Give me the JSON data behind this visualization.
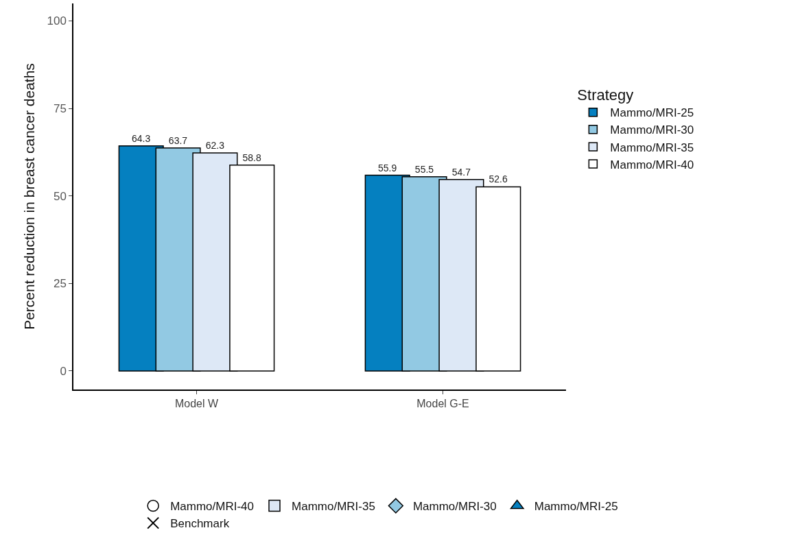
{
  "chart_data": {
    "type": "bar",
    "ylabel": "Percent reduction in breast cancer deaths",
    "legend_title": "Strategy",
    "categories": [
      "Model W",
      "Model G-E"
    ],
    "ylim": [
      -5.3,
      105
    ],
    "yticks": [
      0,
      25,
      50,
      75,
      100
    ],
    "grid": false,
    "legend": "right",
    "data_labels": true,
    "series": [
      {
        "name": "Mammo/MRI-25",
        "color": "#0580c0",
        "values": [
          64.3,
          55.9
        ]
      },
      {
        "name": "Mammo/MRI-30",
        "color": "#92c9e3",
        "values": [
          63.7,
          55.5
        ]
      },
      {
        "name": "Mammo/MRI-35",
        "color": "#dde8f6",
        "values": [
          62.3,
          54.7
        ]
      },
      {
        "name": "Mammo/MRI-40",
        "color": "#ffffff",
        "values": [
          58.8,
          52.6
        ]
      },
      {
        "name": "Mammo/MRI-40",
        "type": "scatter",
        "marker": "circle",
        "color": "#ffffff",
        "values": [
          null,
          null
        ]
      },
      {
        "name": "Mammo/MRI-35",
        "type": "scatter",
        "marker": "square",
        "color": "#dde8f6",
        "values": [
          null,
          null
        ]
      },
      {
        "name": "Mammo/MRI-30",
        "type": "scatter",
        "marker": "diamond",
        "color": "#92c9e3",
        "values": [
          null,
          null
        ]
      },
      {
        "name": "Mammo/MRI-25",
        "type": "scatter",
        "marker": "triangle",
        "color": "#0580c0",
        "values": [
          null,
          null
        ]
      },
      {
        "name": "Benchmark",
        "type": "scatter",
        "marker": "cross",
        "color": "#000000",
        "values": [
          null,
          null
        ]
      }
    ]
  }
}
